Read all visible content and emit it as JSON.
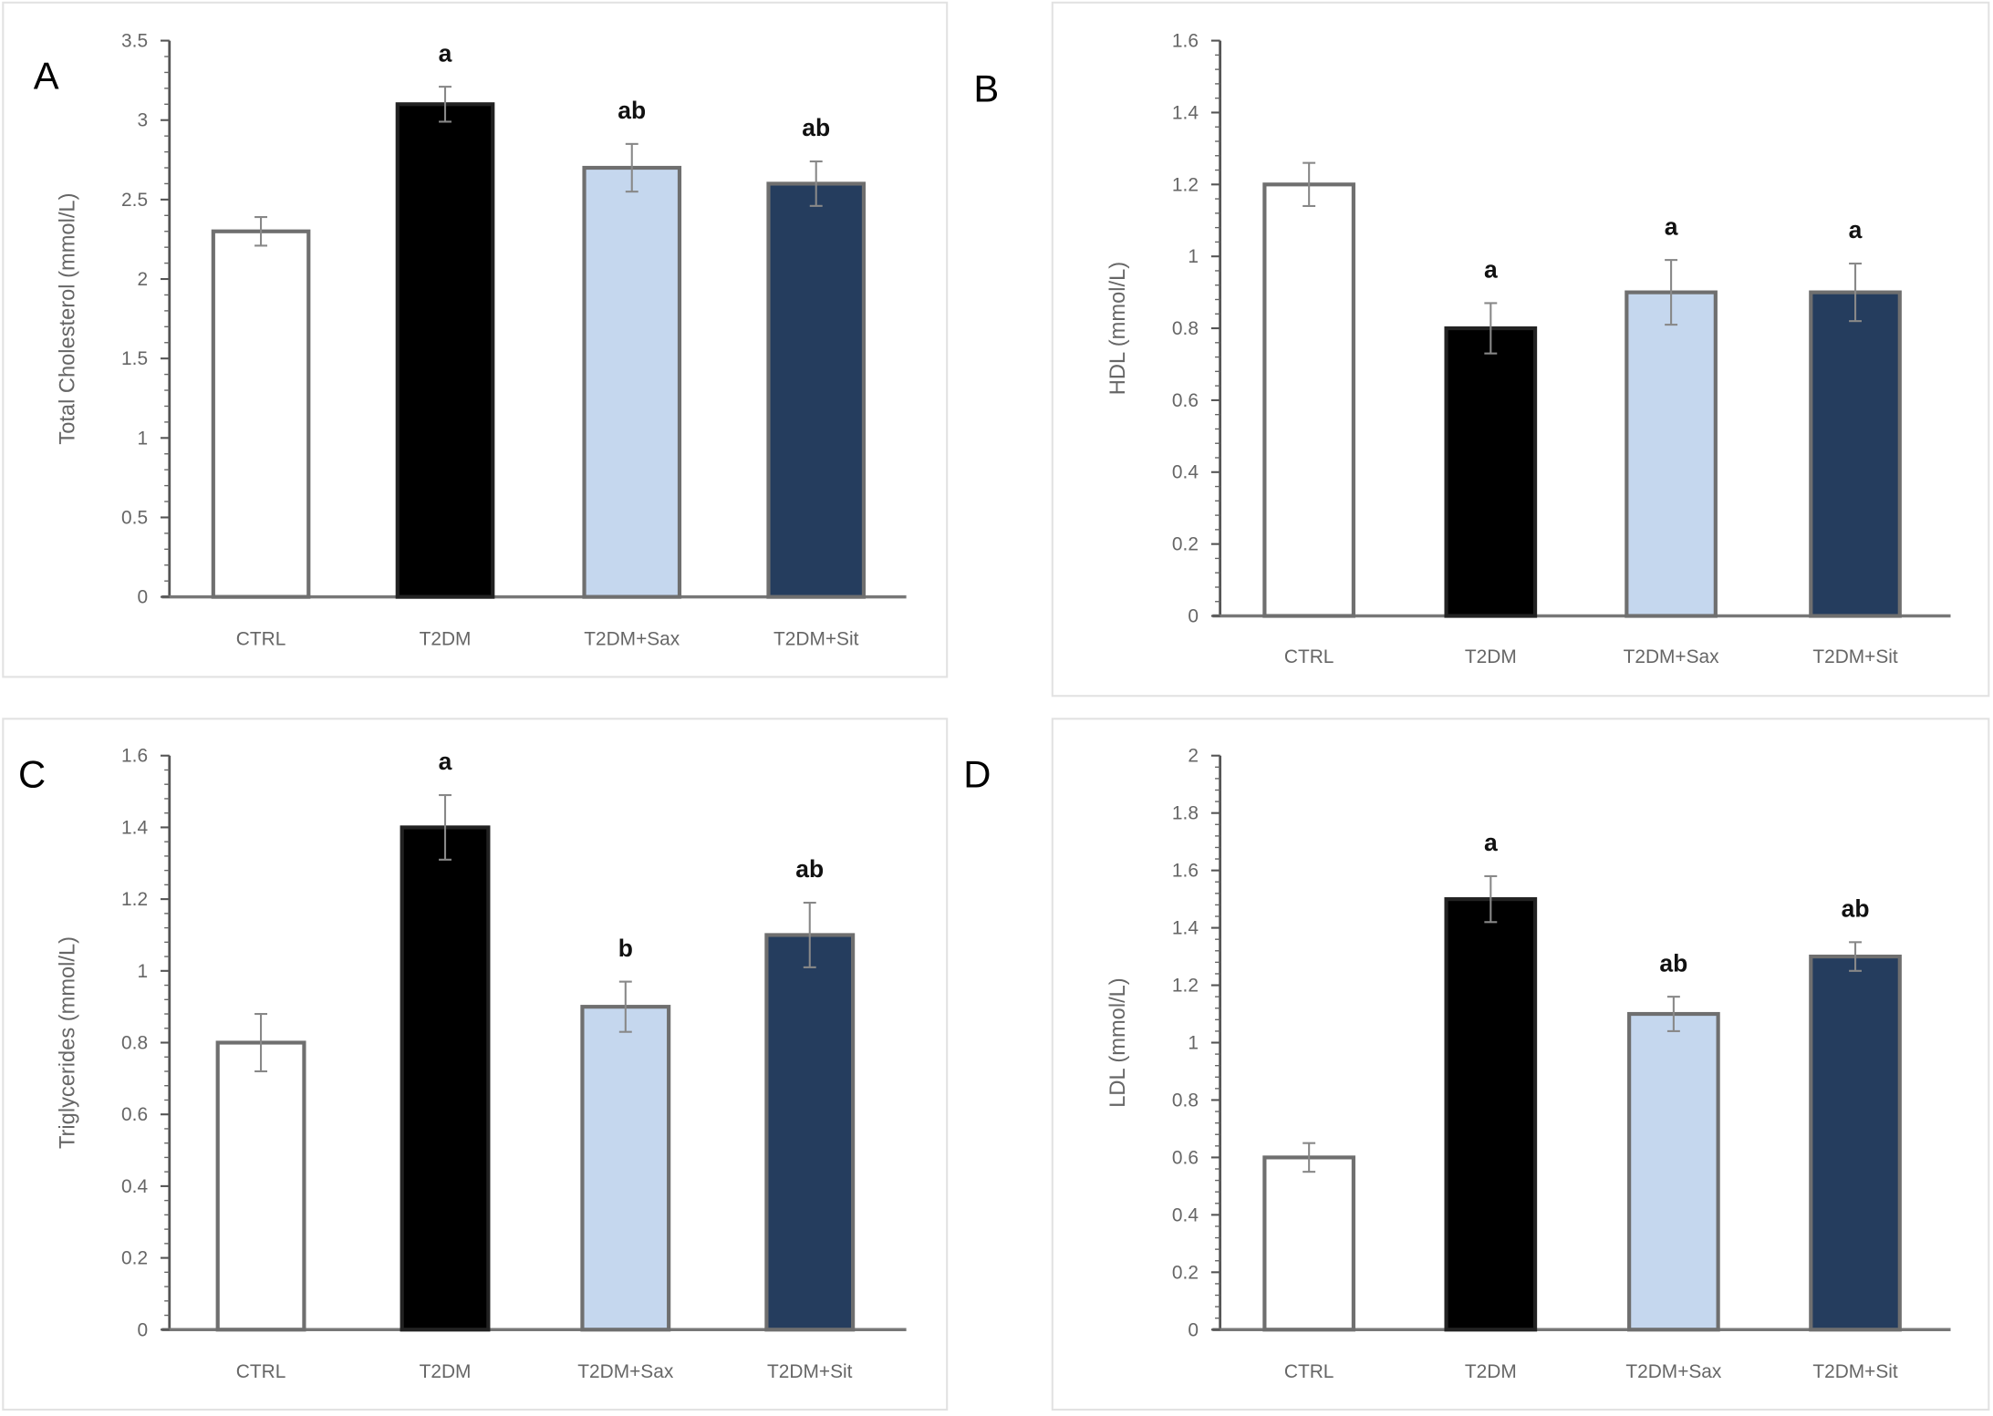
{
  "chart_data": [
    {
      "type": "bar",
      "panel_letter": "A",
      "categories": [
        "CTRL",
        "T2DM",
        "T2DM+Sax",
        "T2DM+Sit"
      ],
      "values": [
        2.3,
        3.1,
        2.7,
        2.6
      ],
      "errors": [
        0.09,
        0.11,
        0.15,
        0.14
      ],
      "significance": [
        "",
        "a",
        "ab",
        "ab"
      ],
      "ylabel": "Total Cholesterol (mmol/L)",
      "xlabel": "",
      "ylim": [
        0,
        3.5
      ],
      "yticks": [
        "0",
        "0.5",
        "1",
        "1.5",
        "2",
        "2.5",
        "3",
        "3.5"
      ],
      "colors": [
        "#ffffff",
        "#000000",
        "#c5d7ee",
        "#253d5e"
      ],
      "grid": false
    },
    {
      "type": "bar",
      "panel_letter": "B",
      "categories": [
        "CTRL",
        "T2DM",
        "T2DM+Sax",
        "T2DM+Sit"
      ],
      "values": [
        1.2,
        0.8,
        0.9,
        0.9
      ],
      "errors": [
        0.06,
        0.07,
        0.09,
        0.08
      ],
      "significance": [
        "",
        "a",
        "a",
        "a"
      ],
      "ylabel": "HDL (mmol/L)",
      "xlabel": "",
      "ylim": [
        0,
        1.6
      ],
      "yticks": [
        "0",
        "0.2",
        "0.4",
        "0.6",
        "0.8",
        "1",
        "1.2",
        "1.4",
        "1.6"
      ],
      "colors": [
        "#ffffff",
        "#000000",
        "#c5d7ee",
        "#253d5e"
      ],
      "grid": false
    },
    {
      "type": "bar",
      "panel_letter": "C",
      "categories": [
        "CTRL",
        "T2DM",
        "T2DM+Sax",
        "T2DM+Sit"
      ],
      "values": [
        0.8,
        1.4,
        0.9,
        1.1
      ],
      "errors": [
        0.08,
        0.09,
        0.07,
        0.09
      ],
      "significance": [
        "",
        "a",
        "b",
        "ab"
      ],
      "ylabel": "Triglycerides (mmol/L)",
      "xlabel": "",
      "ylim": [
        0,
        1.6
      ],
      "yticks": [
        "0",
        "0.2",
        "0.4",
        "0.6",
        "0.8",
        "1",
        "1.2",
        "1.4",
        "1.6"
      ],
      "colors": [
        "#ffffff",
        "#000000",
        "#c5d7ee",
        "#253d5e"
      ],
      "grid": false
    },
    {
      "type": "bar",
      "panel_letter": "D",
      "categories": [
        "CTRL",
        "T2DM",
        "T2DM+Sax",
        "T2DM+Sit"
      ],
      "values": [
        0.6,
        1.5,
        1.1,
        1.3
      ],
      "errors": [
        0.05,
        0.08,
        0.06,
        0.05
      ],
      "significance": [
        "",
        "a",
        "ab",
        "ab"
      ],
      "ylabel": "LDL (mmol/L)",
      "xlabel": "",
      "ylim": [
        0,
        2
      ],
      "yticks": [
        "0",
        "0.2",
        "0.4",
        "0.6",
        "0.8",
        "1",
        "1.2",
        "1.4",
        "1.6",
        "1.8",
        "2"
      ],
      "colors": [
        "#ffffff",
        "#000000",
        "#c5d7ee",
        "#253d5e"
      ],
      "grid": false
    }
  ]
}
